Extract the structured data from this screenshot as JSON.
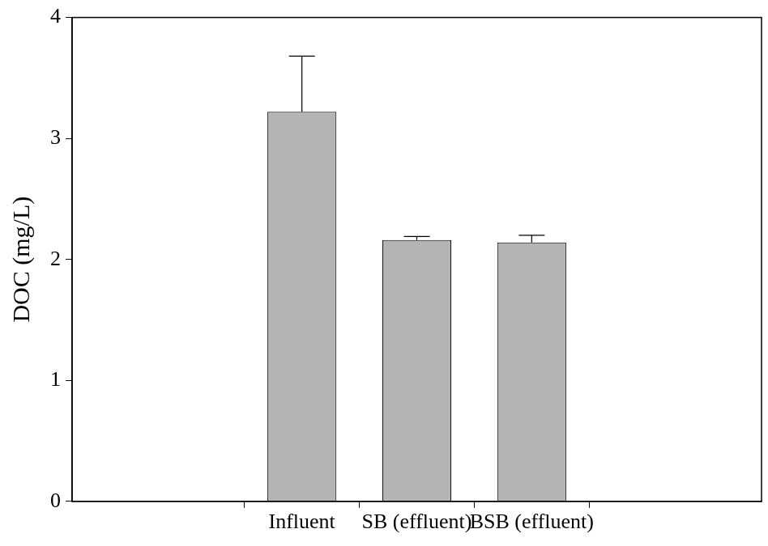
{
  "chart_data": {
    "type": "bar",
    "categories": [
      "Influent",
      "SB (effluent)",
      "BSB (effluent)"
    ],
    "values": [
      3.22,
      2.16,
      2.14
    ],
    "errors": [
      0.46,
      0.03,
      0.06
    ],
    "color": "#b4b4b4",
    "y_label": "DOC (mg/L)",
    "ylim": [
      0,
      4
    ],
    "yticks": [
      0,
      1,
      2,
      3,
      4
    ],
    "grid": false
  }
}
